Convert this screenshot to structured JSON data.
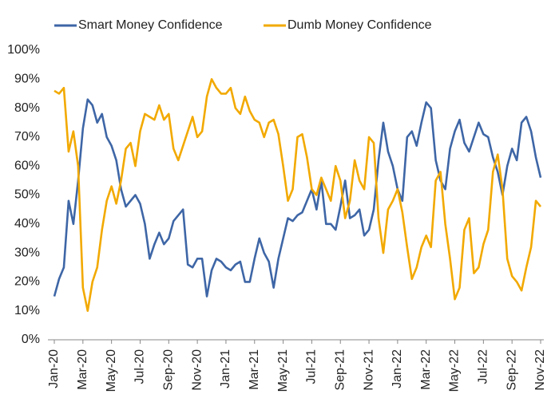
{
  "chart_data": {
    "type": "line",
    "x": [
      "Jan-20",
      null,
      null,
      null,
      null,
      null,
      "Mar-20",
      null,
      null,
      null,
      null,
      null,
      "May-20",
      null,
      null,
      null,
      null,
      null,
      "Jul-20",
      null,
      null,
      null,
      null,
      null,
      "Sep-20",
      null,
      null,
      null,
      null,
      null,
      "Nov-20",
      null,
      null,
      null,
      null,
      null,
      "Jan-21",
      null,
      null,
      null,
      null,
      null,
      "Mar-21",
      null,
      null,
      null,
      null,
      null,
      "May-21",
      null,
      null,
      null,
      null,
      null,
      "Jul-21",
      null,
      null,
      null,
      null,
      null,
      "Sep-21",
      null,
      null,
      null,
      null,
      null,
      "Nov-21",
      null,
      null,
      null,
      null,
      null,
      "Jan-22",
      null,
      null,
      null,
      null,
      null,
      "Mar-22",
      null,
      null,
      null,
      null,
      null,
      "May-22",
      null,
      null,
      null,
      null,
      null,
      "Jul-22",
      null,
      null,
      null,
      null,
      null,
      "Sep-22",
      null,
      null,
      null,
      null,
      null,
      "Nov-22"
    ],
    "series": [
      {
        "name": "Smart Money Confidence",
        "color": "#3e66a6",
        "values": [
          15,
          21,
          25,
          48,
          40,
          55,
          73,
          83,
          81,
          75,
          78,
          70,
          67,
          62,
          52,
          46,
          48,
          50,
          47,
          40,
          28,
          33,
          37,
          33,
          35,
          41,
          43,
          45,
          26,
          25,
          28,
          28,
          15,
          24,
          28,
          27,
          25,
          24,
          26,
          27,
          20,
          20,
          28,
          35,
          30,
          27,
          18,
          28,
          35,
          42,
          41,
          43,
          44,
          48,
          52,
          45,
          55,
          40,
          40,
          38,
          46,
          55,
          42,
          43,
          45,
          36,
          38,
          45,
          62,
          75,
          65,
          60,
          52,
          48,
          70,
          72,
          67,
          75,
          82,
          80,
          62,
          55,
          52,
          66,
          72,
          76,
          68,
          65,
          70,
          75,
          71,
          70,
          63,
          58,
          50,
          60,
          66,
          62,
          75,
          77,
          72,
          63,
          56
        ]
      },
      {
        "name": "Dumb Money Confidence",
        "color": "#f2a900",
        "values": [
          86,
          85,
          87,
          65,
          72,
          60,
          18,
          10,
          20,
          25,
          38,
          48,
          53,
          47,
          55,
          66,
          68,
          60,
          72,
          78,
          77,
          76,
          81,
          76,
          78,
          66,
          62,
          67,
          72,
          77,
          70,
          72,
          84,
          90,
          87,
          85,
          85,
          87,
          80,
          78,
          84,
          79,
          76,
          75,
          70,
          75,
          76,
          71,
          60,
          48,
          52,
          70,
          71,
          63,
          52,
          50,
          56,
          52,
          48,
          60,
          55,
          42,
          48,
          62,
          55,
          52,
          70,
          68,
          42,
          30,
          45,
          48,
          52,
          44,
          32,
          21,
          25,
          32,
          36,
          32,
          55,
          58,
          40,
          28,
          14,
          18,
          38,
          42,
          23,
          25,
          33,
          38,
          58,
          64,
          52,
          28,
          22,
          20,
          17,
          25,
          32,
          48,
          46
        ]
      }
    ],
    "ylim": [
      0,
      100
    ],
    "yticks": [
      {
        "value": 0,
        "label": "0%"
      },
      {
        "value": 10,
        "label": "10%"
      },
      {
        "value": 20,
        "label": "20%"
      },
      {
        "value": 30,
        "label": "30%"
      },
      {
        "value": 40,
        "label": "40%"
      },
      {
        "value": 50,
        "label": "50%"
      },
      {
        "value": 60,
        "label": "60%"
      },
      {
        "value": 70,
        "label": "70%"
      },
      {
        "value": 80,
        "label": "80%"
      },
      {
        "value": 90,
        "label": "90%"
      },
      {
        "value": 100,
        "label": "100%"
      }
    ],
    "grid": false,
    "legend": "top"
  }
}
